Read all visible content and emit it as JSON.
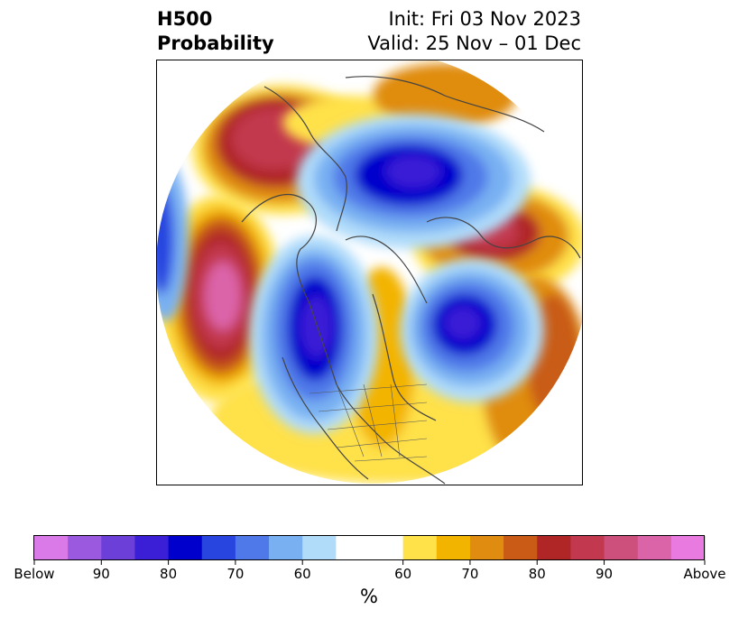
{
  "title": {
    "left_line1": "H500",
    "left_line2": "Probability",
    "right_line1": "Init: Fri 03 Nov 2023",
    "right_line2": "Valid: 25 Nov – 01 Dec"
  },
  "colorbar": {
    "unit_label": "%",
    "tick_labels": [
      "Below",
      "90",
      "80",
      "70",
      "60",
      "60",
      "70",
      "80",
      "90",
      "Above"
    ],
    "bins": [
      {
        "color": "#d97ae8"
      },
      {
        "color": "#9b59e0"
      },
      {
        "color": "#6c3fd8"
      },
      {
        "color": "#3a1fd6"
      },
      {
        "color": "#0000cc"
      },
      {
        "color": "#2845e0"
      },
      {
        "color": "#4f79e8"
      },
      {
        "color": "#78b0f2"
      },
      {
        "color": "#b0dcfa"
      },
      {
        "color": "#ffffff"
      },
      {
        "color": "#ffe14a"
      },
      {
        "color": "#f3b400"
      },
      {
        "color": "#e08c10"
      },
      {
        "color": "#c95b16"
      },
      {
        "color": "#b02526"
      },
      {
        "color": "#c2384e"
      },
      {
        "color": "#cc4f7c"
      },
      {
        "color": "#db63a8"
      },
      {
        "color": "#e87ae0"
      }
    ]
  },
  "map": {
    "projection": "polar stereographic (north)",
    "anomalies": [
      {
        "region": "Gulf of Alaska / NE Pacific",
        "sign": "above"
      },
      {
        "region": "Northern Europe / Scandinavia",
        "sign": "above"
      },
      {
        "region": "Central Asia",
        "sign": "above"
      },
      {
        "region": "Arctic / Siberia",
        "sign": "below"
      },
      {
        "region": "North Atlantic",
        "sign": "below"
      },
      {
        "region": "Western North Pacific",
        "sign": "below"
      }
    ]
  }
}
